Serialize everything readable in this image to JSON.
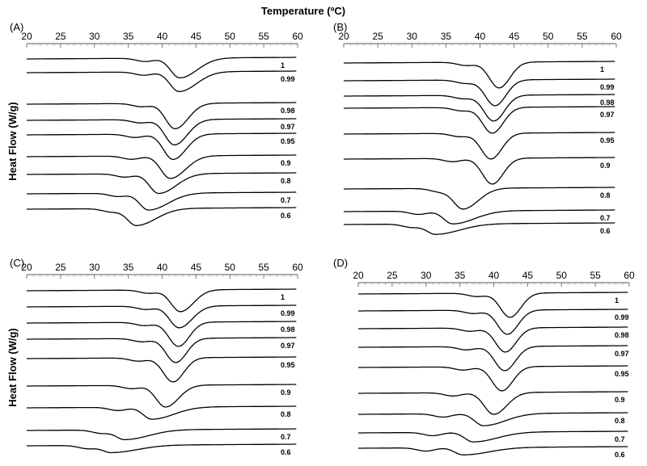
{
  "figure": {
    "top_title": "Temperature (ºC)",
    "side_titles": [
      "Heat Flow (W/g)",
      "Heat Flow (W/g)"
    ]
  },
  "chart_data": [
    {
      "type": "line",
      "panel": "(A)",
      "xlabel": "Temperature (ºC)",
      "ylabel": "Heat Flow (W/g)",
      "xlim": [
        20,
        60
      ],
      "xticks": [
        20,
        25,
        30,
        35,
        40,
        45,
        50,
        55,
        60
      ],
      "grid": false,
      "series": [
        {
          "name": "1",
          "shoulder_c": 37.5,
          "peak_c": 42.6,
          "depth": 0.7
        },
        {
          "name": "0.99",
          "shoulder_c": 37.3,
          "peak_c": 42.5,
          "depth": 0.7
        },
        {
          "name": "0.98",
          "shoulder_c": 37.0,
          "peak_c": 41.9,
          "depth": 0.9
        },
        {
          "name": "0.97",
          "shoulder_c": 36.8,
          "peak_c": 41.8,
          "depth": 0.9
        },
        {
          "name": "0.95",
          "shoulder_c": 36.0,
          "peak_c": 41.6,
          "depth": 0.9
        },
        {
          "name": "0.9",
          "shoulder_c": 35.5,
          "peak_c": 41.2,
          "depth": 0.8
        },
        {
          "name": "0.8",
          "shoulder_c": 34.5,
          "peak_c": 39.5,
          "depth": 0.7
        },
        {
          "name": "0.7",
          "shoulder_c": 33.5,
          "peak_c": 38.0,
          "depth": 0.6
        },
        {
          "name": "0.6",
          "shoulder_c": 32.5,
          "peak_c": 36.2,
          "depth": 0.6
        }
      ]
    },
    {
      "type": "line",
      "panel": "(B)",
      "xlabel": "",
      "ylabel": "",
      "xlim": [
        20,
        60
      ],
      "xticks": [
        20,
        25,
        30,
        35,
        40,
        45,
        50,
        55,
        60
      ],
      "grid": false,
      "series": [
        {
          "name": "1",
          "shoulder_c": 38.0,
          "peak_c": 42.8,
          "depth": 1.0
        },
        {
          "name": "0.99",
          "shoulder_c": 37.8,
          "peak_c": 42.2,
          "depth": 1.0
        },
        {
          "name": "0.98",
          "shoulder_c": 37.5,
          "peak_c": 42.0,
          "depth": 1.0
        },
        {
          "name": "0.97",
          "shoulder_c": 37.3,
          "peak_c": 41.8,
          "depth": 1.0
        },
        {
          "name": "0.95",
          "shoulder_c": 37.0,
          "peak_c": 41.6,
          "depth": 1.0
        },
        {
          "name": "0.9",
          "shoulder_c": 36.0,
          "peak_c": 41.8,
          "depth": 1.0
        },
        {
          "name": "0.8",
          "shoulder_c": 34.0,
          "peak_c": 37.5,
          "depth": 0.8
        },
        {
          "name": "0.7",
          "shoulder_c": 31.0,
          "peak_c": 36.0,
          "depth": 0.5
        },
        {
          "name": "0.6",
          "shoulder_c": 30.0,
          "peak_c": 33.5,
          "depth": 0.4
        }
      ]
    },
    {
      "type": "line",
      "panel": "(C)",
      "xlabel": "",
      "ylabel": "Heat Flow (W/g)",
      "xlim": [
        20,
        60
      ],
      "xticks": [
        20,
        25,
        30,
        35,
        40,
        45,
        50,
        55,
        60
      ],
      "grid": false,
      "series": [
        {
          "name": "1",
          "shoulder_c": 38.0,
          "peak_c": 42.7,
          "depth": 0.9
        },
        {
          "name": "0.99",
          "shoulder_c": 37.6,
          "peak_c": 42.5,
          "depth": 0.9
        },
        {
          "name": "0.98",
          "shoulder_c": 37.4,
          "peak_c": 42.4,
          "depth": 1.0
        },
        {
          "name": "0.97",
          "shoulder_c": 37.0,
          "peak_c": 42.0,
          "depth": 1.0
        },
        {
          "name": "0.95",
          "shoulder_c": 36.5,
          "peak_c": 41.6,
          "depth": 1.0
        },
        {
          "name": "0.9",
          "shoulder_c": 35.5,
          "peak_c": 40.5,
          "depth": 0.9
        },
        {
          "name": "0.8",
          "shoulder_c": 33.5,
          "peak_c": 38.5,
          "depth": 0.5
        },
        {
          "name": "0.7",
          "shoulder_c": 31.0,
          "peak_c": 34.5,
          "depth": 0.4
        },
        {
          "name": "0.6",
          "shoulder_c": 29.0,
          "peak_c": 32.5,
          "depth": 0.3
        }
      ]
    },
    {
      "type": "line",
      "panel": "(D)",
      "xlabel": "",
      "ylabel": "",
      "xlim": [
        20,
        60
      ],
      "xticks": [
        20,
        25,
        30,
        35,
        40,
        45,
        50,
        55,
        60
      ],
      "grid": false,
      "series": [
        {
          "name": "1",
          "shoulder_c": 37.5,
          "peak_c": 42.4,
          "depth": 1.0
        },
        {
          "name": "0.99",
          "shoulder_c": 37.0,
          "peak_c": 42.0,
          "depth": 1.0
        },
        {
          "name": "0.98",
          "shoulder_c": 36.5,
          "peak_c": 41.7,
          "depth": 1.0
        },
        {
          "name": "0.97",
          "shoulder_c": 36.0,
          "peak_c": 41.6,
          "depth": 1.0
        },
        {
          "name": "0.95",
          "shoulder_c": 35.5,
          "peak_c": 41.2,
          "depth": 1.0
        },
        {
          "name": "0.9",
          "shoulder_c": 34.0,
          "peak_c": 40.0,
          "depth": 0.9
        },
        {
          "name": "0.8",
          "shoulder_c": 32.5,
          "peak_c": 38.5,
          "depth": 0.5
        },
        {
          "name": "0.7",
          "shoulder_c": 31.0,
          "peak_c": 37.0,
          "depth": 0.4
        },
        {
          "name": "0.6",
          "shoulder_c": 30.0,
          "peak_c": 35.5,
          "depth": 0.3
        }
      ]
    }
  ]
}
